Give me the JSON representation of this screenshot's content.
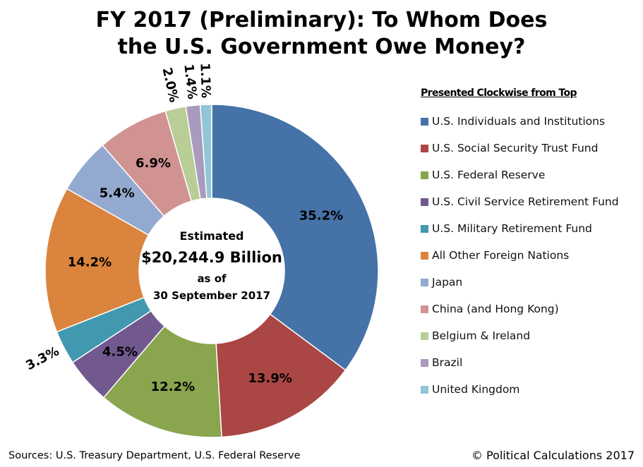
{
  "chart_data": {
    "type": "pie",
    "title": "FY 2017 (Preliminary): To Whom Does the U.S. Government Owe Money?",
    "title_lines": [
      "FY 2017 (Preliminary): To Whom Does",
      "the U.S. Government Owe Money?"
    ],
    "hole": true,
    "center_text": [
      "Estimated",
      "$20,244.9 Billion",
      "as of",
      "30 September 2017"
    ],
    "legend_title": "Presented Clockwise from Top",
    "legend_position": "right",
    "categories": [
      "U.S. Individuals and Institutions",
      "U.S. Social Security Trust Fund",
      "U.S. Federal Reserve",
      "U.S. Civil Service Retirement Fund",
      "U.S. Military Retirement Fund",
      "All Other Foreign Nations",
      "Japan",
      "China (and Hong Kong)",
      "Belgium & Ireland",
      "Brazil",
      "United Kingdom"
    ],
    "values": [
      35.2,
      13.9,
      12.2,
      4.5,
      3.3,
      14.2,
      5.4,
      6.9,
      2.0,
      1.4,
      1.1
    ],
    "labels": [
      "35.2%",
      "13.9%",
      "12.2%",
      "4.5%",
      "3.3%",
      "14.2%",
      "5.4%",
      "6.9%",
      "2.0%",
      "1.4%",
      "1.1%"
    ],
    "colors": [
      "#4572A7",
      "#AA4643",
      "#89A54E",
      "#71588F",
      "#4198AF",
      "#DB843D",
      "#93A9CF",
      "#D19392",
      "#B9CD96",
      "#A99BBD",
      "#92C5D6"
    ]
  },
  "footer": {
    "sources": "Sources:  U.S. Treasury Department, U.S. Federal Reserve",
    "copyright": "© Political Calculations 2017"
  }
}
